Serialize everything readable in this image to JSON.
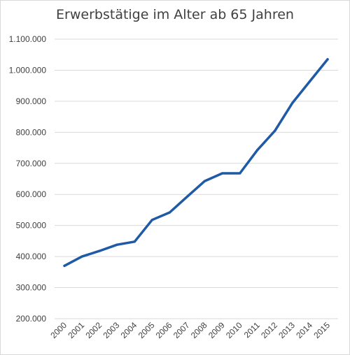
{
  "chart_data": {
    "type": "line",
    "title": "Erwerbstätige im Alter ab 65 Jahren",
    "xlabel": "",
    "ylabel": "",
    "x": [
      "2000",
      "2001",
      "2002",
      "2003",
      "2004",
      "2005",
      "2006",
      "2007",
      "2008",
      "2009",
      "2010",
      "2011",
      "2012",
      "2013",
      "2014",
      "2015"
    ],
    "series": [
      {
        "values": [
          370000,
          400000,
          418000,
          438000,
          448000,
          518000,
          542000,
          593000,
          643000,
          668000,
          668000,
          743000,
          805000,
          895000,
          965000,
          1035000
        ]
      }
    ],
    "ylim": [
      200000,
      1100000
    ],
    "y_ticks": [
      200000,
      300000,
      400000,
      500000,
      600000,
      700000,
      800000,
      900000,
      1000000,
      1100000
    ],
    "y_tick_labels": [
      "200.000",
      "300.000",
      "400.000",
      "500.000",
      "600.000",
      "700.000",
      "800.000",
      "900.000",
      "1.000.000",
      "1.100.000"
    ],
    "grid": "horizontal",
    "legend": "none",
    "line_color": "#1f5aa6",
    "grid_color": "#d9d9d9"
  }
}
